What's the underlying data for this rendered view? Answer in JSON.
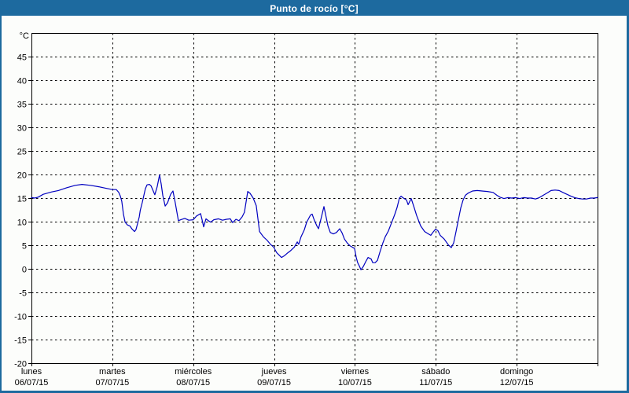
{
  "window": {
    "title": "Punto de rocío [°C]",
    "title_bar_color": "#1d6a9f",
    "border_color": "#1d6a9f",
    "background_color": "#fcfdfb"
  },
  "chart_data": {
    "type": "line",
    "title": "Punto de rocío [°C]",
    "y_unit_label": "°C",
    "ylabel": "",
    "xlabel": "",
    "ylim": [
      -20,
      50
    ],
    "y_ticks": [
      45,
      40,
      35,
      30,
      25,
      20,
      15,
      10,
      5,
      0,
      -5,
      -10,
      -15,
      -20
    ],
    "grid": "dashed-black",
    "line_color": "#0000c0",
    "axis_color": "#000000",
    "x_range_hours": [
      0,
      168
    ],
    "x_days": [
      {
        "name": "lunes",
        "date": "06/07/15"
      },
      {
        "name": "martes",
        "date": "07/07/15"
      },
      {
        "name": "miércoles",
        "date": "08/07/15"
      },
      {
        "name": "jueves",
        "date": "09/07/15"
      },
      {
        "name": "viernes",
        "date": "10/07/15"
      },
      {
        "name": "sábado",
        "date": "11/07/15"
      },
      {
        "name": "domingo",
        "date": "12/07/15"
      }
    ],
    "series": [
      {
        "name": "Punto de rocío",
        "points_hour_degC": [
          [
            0,
            15.1
          ],
          [
            1,
            15.0
          ],
          [
            2,
            15.2
          ],
          [
            3.5,
            15.8
          ],
          [
            6,
            16.3
          ],
          [
            8,
            16.6
          ],
          [
            10.5,
            17.2
          ],
          [
            13,
            17.7
          ],
          [
            15,
            17.9
          ],
          [
            17.5,
            17.7
          ],
          [
            20,
            17.4
          ],
          [
            22,
            17.1
          ],
          [
            23.3,
            16.9
          ],
          [
            24,
            16.8
          ],
          [
            25.2,
            16.8
          ],
          [
            25.9,
            16.2
          ],
          [
            26.4,
            15.4
          ],
          [
            26.8,
            14.3
          ],
          [
            27.3,
            11.6
          ],
          [
            27.8,
            9.9
          ],
          [
            28.5,
            9.3
          ],
          [
            29.2,
            9.1
          ],
          [
            29.9,
            8.4
          ],
          [
            30.6,
            7.9
          ],
          [
            31,
            8.3
          ],
          [
            31.5,
            9.6
          ],
          [
            32,
            11.0
          ],
          [
            32.3,
            12.4
          ],
          [
            32.9,
            14.1
          ],
          [
            33.8,
            17.0
          ],
          [
            34.3,
            17.8
          ],
          [
            35,
            17.9
          ],
          [
            35.5,
            17.6
          ],
          [
            36.6,
            15.7
          ],
          [
            37.3,
            17.4
          ],
          [
            38,
            19.9
          ],
          [
            38.5,
            18.0
          ],
          [
            39,
            15.5
          ],
          [
            39.7,
            13.3
          ],
          [
            40.4,
            14.0
          ],
          [
            41.3,
            15.8
          ],
          [
            42,
            16.5
          ],
          [
            42.7,
            13.9
          ],
          [
            43.6,
            10.2
          ],
          [
            44.3,
            10.4
          ],
          [
            45.5,
            10.7
          ],
          [
            46.7,
            10.3
          ],
          [
            48,
            10.4
          ],
          [
            49,
            11.2
          ],
          [
            50.2,
            11.7
          ],
          [
            50.6,
            10.5
          ],
          [
            51.1,
            8.9
          ],
          [
            51.8,
            10.6
          ],
          [
            52.5,
            10.2
          ],
          [
            53.2,
            9.9
          ],
          [
            54.1,
            10.4
          ],
          [
            55.5,
            10.6
          ],
          [
            56.7,
            10.3
          ],
          [
            57.9,
            10.5
          ],
          [
            59,
            10.6
          ],
          [
            59.7,
            9.8
          ],
          [
            60.7,
            10.5
          ],
          [
            61.6,
            10.2
          ],
          [
            62.5,
            11.0
          ],
          [
            63.2,
            12.0
          ],
          [
            64.2,
            16.4
          ],
          [
            64.9,
            16.0
          ],
          [
            65.8,
            15.0
          ],
          [
            66.7,
            13.4
          ],
          [
            67.7,
            7.9
          ],
          [
            68.8,
            6.8
          ],
          [
            70,
            6.0
          ],
          [
            70.9,
            5.2
          ],
          [
            71.9,
            4.6
          ],
          [
            72.8,
            3.4
          ],
          [
            74.2,
            2.4
          ],
          [
            75.1,
            2.8
          ],
          [
            76.1,
            3.4
          ],
          [
            77,
            3.9
          ],
          [
            78,
            4.6
          ],
          [
            78.9,
            5.7
          ],
          [
            79.3,
            5.2
          ],
          [
            80,
            6.8
          ],
          [
            81,
            8.3
          ],
          [
            81.7,
            9.9
          ],
          [
            82.8,
            11.4
          ],
          [
            83.3,
            11.6
          ],
          [
            84,
            10.2
          ],
          [
            84.7,
            9.1
          ],
          [
            85.2,
            8.5
          ],
          [
            85.9,
            10.5
          ],
          [
            86.8,
            13.2
          ],
          [
            87.5,
            10.8
          ],
          [
            88,
            9.1
          ],
          [
            88.7,
            7.7
          ],
          [
            89.6,
            7.4
          ],
          [
            90.5,
            7.7
          ],
          [
            91.5,
            8.5
          ],
          [
            92.2,
            7.6
          ],
          [
            92.9,
            6.3
          ],
          [
            93.8,
            5.4
          ],
          [
            94.5,
            4.9
          ],
          [
            95.2,
            4.6
          ],
          [
            95.9,
            4.3
          ],
          [
            96.4,
            2.4
          ],
          [
            96.8,
            1.3
          ],
          [
            97.3,
            0.6
          ],
          [
            97.8,
            -0.2
          ],
          [
            98.5,
            0.5
          ],
          [
            99.2,
            1.5
          ],
          [
            99.9,
            2.4
          ],
          [
            100.8,
            2.1
          ],
          [
            101.3,
            1.3
          ],
          [
            102,
            1.3
          ],
          [
            102.7,
            1.8
          ],
          [
            103.4,
            3.5
          ],
          [
            104.3,
            5.5
          ],
          [
            105,
            6.8
          ],
          [
            105.9,
            8.0
          ],
          [
            106.9,
            9.8
          ],
          [
            107.8,
            11.5
          ],
          [
            108.5,
            13.0
          ],
          [
            109.2,
            15.0
          ],
          [
            109.7,
            15.4
          ],
          [
            110.4,
            15.0
          ],
          [
            111.3,
            14.6
          ],
          [
            111.8,
            13.6
          ],
          [
            112.7,
            14.9
          ],
          [
            113.6,
            12.9
          ],
          [
            114.3,
            11.3
          ],
          [
            115.5,
            9.1
          ],
          [
            116.7,
            7.9
          ],
          [
            117.8,
            7.4
          ],
          [
            118.5,
            7.1
          ],
          [
            119.2,
            7.8
          ],
          [
            119.9,
            8.4
          ],
          [
            120.6,
            8.1
          ],
          [
            121.3,
            7.1
          ],
          [
            122.5,
            6.3
          ],
          [
            123.7,
            5.1
          ],
          [
            124.6,
            4.5
          ],
          [
            125.3,
            5.5
          ],
          [
            126,
            7.9
          ],
          [
            126.7,
            10.4
          ],
          [
            127.4,
            12.9
          ],
          [
            128.1,
            14.6
          ],
          [
            128.8,
            15.6
          ],
          [
            129.7,
            16.1
          ],
          [
            130.9,
            16.5
          ],
          [
            132.3,
            16.6
          ],
          [
            133.7,
            16.5
          ],
          [
            135.3,
            16.4
          ],
          [
            137,
            16.2
          ],
          [
            138.1,
            15.6
          ],
          [
            139,
            15.2
          ],
          [
            140.2,
            14.9
          ],
          [
            141.4,
            15.1
          ],
          [
            142.5,
            15.0
          ],
          [
            143.7,
            15.1
          ],
          [
            144.9,
            14.9
          ],
          [
            146.1,
            15.1
          ],
          [
            147.2,
            15.0
          ],
          [
            148.4,
            15.0
          ],
          [
            149.6,
            14.8
          ],
          [
            150.7,
            15.1
          ],
          [
            151.9,
            15.6
          ],
          [
            153.1,
            16.1
          ],
          [
            154.2,
            16.6
          ],
          [
            155.4,
            16.7
          ],
          [
            156.6,
            16.6
          ],
          [
            157.7,
            16.2
          ],
          [
            158.9,
            15.8
          ],
          [
            160.1,
            15.4
          ],
          [
            161.2,
            15.1
          ],
          [
            162.4,
            14.9
          ],
          [
            163.6,
            14.8
          ],
          [
            164.7,
            14.8
          ],
          [
            165.9,
            15.0
          ],
          [
            167,
            15.0
          ],
          [
            168,
            15.1
          ]
        ]
      }
    ]
  }
}
